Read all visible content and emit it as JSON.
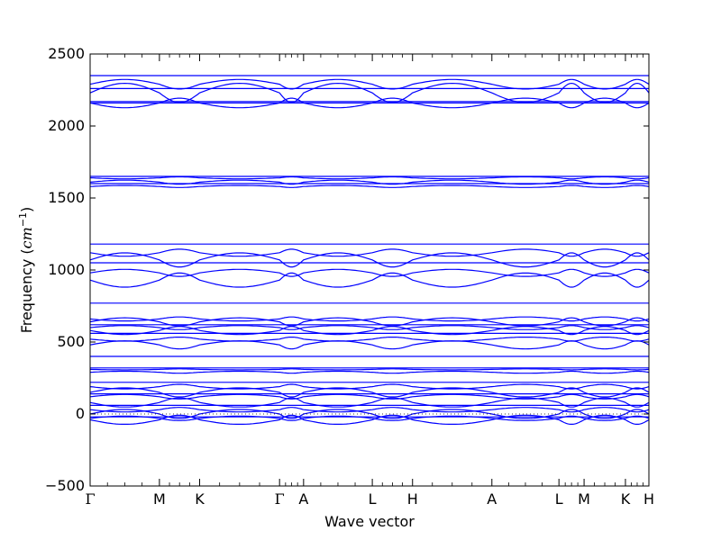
{
  "chart_data": {
    "type": "line",
    "xlabel": "Wave vector",
    "ylabel_main": "Frequency ",
    "ylabel_unit_prefix": "(",
    "ylabel_unit_cm": "cm",
    "ylabel_unit_exp": "−1",
    "ylabel_unit_suffix": ")",
    "ylim": [
      -500,
      2500
    ],
    "xlim": [
      0,
      1
    ],
    "yticks": [
      -500,
      0,
      500,
      1000,
      1500,
      2000,
      2500
    ],
    "ytick_labels": [
      "−500",
      "0",
      "500",
      "1000",
      "1500",
      "2000",
      "2500"
    ],
    "zero_reference_line": true,
    "line_color": "#0000ff",
    "kpoints": [
      {
        "label": "Γ",
        "x": 0.0
      },
      {
        "label": "M",
        "x": 0.124
      },
      {
        "label": "K",
        "x": 0.196
      },
      {
        "label": "Γ",
        "x": 0.339
      },
      {
        "label": "A",
        "x": 0.382
      },
      {
        "label": "L",
        "x": 0.505
      },
      {
        "label": "H",
        "x": 0.577
      },
      {
        "label": "A",
        "x": 0.719
      },
      {
        "label": "L",
        "x": 0.839
      },
      {
        "label": "M",
        "x": 0.884
      },
      {
        "label": "K",
        "x": 0.958
      },
      {
        "label": "H",
        "x": 1.0
      }
    ],
    "minor_tick_points_per_segment": 4,
    "band_segments": [
      {
        "name": "bands-2170",
        "base": 2165,
        "amp": 0,
        "bands": [
          2160,
          2170
        ]
      },
      {
        "name": "bands-2160-2350",
        "base": 2160,
        "amp": 190,
        "bands": [
          2350,
          2160,
          2230,
          2260,
          2290
        ]
      },
      {
        "name": "bands-1600",
        "base": 1600,
        "amp": 40,
        "bands": [
          1650,
          1640,
          1610,
          1600,
          1580
        ]
      },
      {
        "name": "bands-1000",
        "base": 1050,
        "amp": 140,
        "bands": [
          1180,
          1120,
          1070,
          1050,
          980,
          930
        ]
      },
      {
        "name": "bands-600",
        "base": 600,
        "amp": 80,
        "bands": [
          770,
          660,
          640,
          620,
          600,
          580,
          560,
          520,
          480,
          400
        ]
      },
      {
        "name": "bands-300",
        "base": 300,
        "amp": 20,
        "bands": [
          320,
          310,
          290
        ]
      },
      {
        "name": "bands-low",
        "base": 80,
        "amp": 90,
        "bands": [
          220,
          190,
          150,
          140,
          120,
          80,
          60,
          30,
          0,
          -20,
          -30,
          -40
        ]
      }
    ]
  }
}
